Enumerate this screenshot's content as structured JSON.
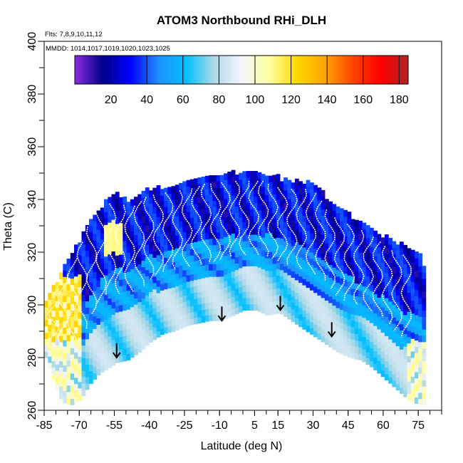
{
  "chart_data": {
    "type": "heatmap",
    "title": "ATOM3 Northbound RHi_DLH",
    "flights_note": "Flts: 7,8,9,10,11,12",
    "dates_note": "MMDD: 1014,1017,1019,1020,1023,1025",
    "xlabel": "Latitude (deg N)",
    "ylabel": "Theta (C)",
    "xlim": [
      -85,
      85
    ],
    "ylim": [
      260,
      400
    ],
    "x_ticks": [
      -85,
      -70,
      -55,
      -40,
      -25,
      -10,
      5,
      15,
      30,
      45,
      60,
      75
    ],
    "y_ticks": [
      260,
      280,
      300,
      320,
      340,
      360,
      380,
      400
    ],
    "colorbar": {
      "min": 0,
      "max": 185,
      "ticks": [
        20,
        40,
        60,
        80,
        100,
        120,
        140,
        160,
        180
      ],
      "colors": [
        "#8a2be2",
        "#00008b",
        "#0000ff",
        "#1e90ff",
        "#00bfff",
        "#add8e6",
        "#f5f5ff",
        "#ffffa0",
        "#ffd700",
        "#ffa500",
        "#ff4500",
        "#ff0000",
        "#b22222"
      ]
    },
    "arrows": [
      {
        "lat": -54,
        "theta": 280
      },
      {
        "lat": -9,
        "theta": 294
      },
      {
        "lat": 16,
        "theta": 298
      },
      {
        "lat": 38,
        "theta": 288
      }
    ],
    "envelope": {
      "lat": [
        -85,
        -82,
        -78,
        -74,
        -70,
        -66,
        -62,
        -58,
        -55,
        -50,
        -45,
        -40,
        -35,
        -30,
        -25,
        -20,
        -15,
        -10,
        -5,
        0,
        5,
        10,
        15,
        20,
        25,
        30,
        35,
        40,
        45,
        50,
        55,
        60,
        65,
        70,
        75,
        78
      ],
      "top": [
        300,
        305,
        312,
        318,
        324,
        330,
        335,
        340,
        341,
        339,
        341,
        343,
        344,
        345,
        346,
        347,
        348,
        348,
        349,
        349,
        349,
        349,
        347,
        346,
        346,
        344,
        340,
        336,
        333,
        330,
        327,
        325,
        323,
        321,
        319,
        310
      ],
      "bottom": [
        280,
        272,
        263,
        262,
        264,
        270,
        274,
        276,
        278,
        279,
        282,
        286,
        289,
        290,
        292,
        293,
        294,
        294,
        296,
        298,
        298,
        296,
        297,
        294,
        291,
        288,
        285,
        282,
        280,
        279,
        276,
        272,
        268,
        264,
        262,
        262
      ]
    }
  }
}
